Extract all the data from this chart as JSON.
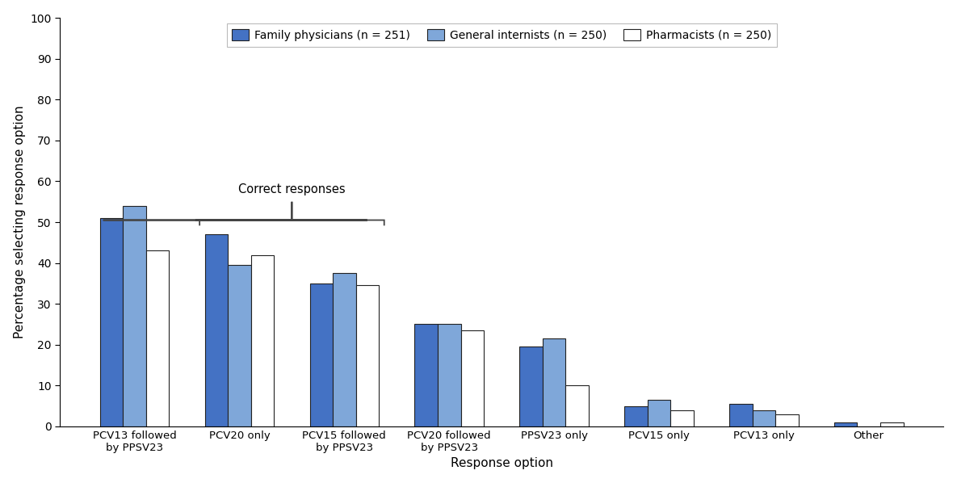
{
  "categories": [
    "PCV13 followed\nby PPSV23",
    "PCV20 only",
    "PCV15 followed\nby PPSV23",
    "PCV20 followed\nby PPSV23",
    "PPSV23 only",
    "PCV15 only",
    "PCV13 only",
    "Other"
  ],
  "family_physicians": [
    51,
    47,
    35,
    25,
    19.5,
    5,
    5.5,
    1
  ],
  "general_internists": [
    54,
    39.5,
    37.5,
    25,
    21.5,
    6.5,
    4,
    0
  ],
  "pharmacists": [
    43,
    42,
    34.5,
    23.5,
    10,
    4,
    3,
    1
  ],
  "colors": {
    "family_physicians": "#4472c4",
    "general_internists": "#7fa7d9",
    "pharmacists": "#ffffff"
  },
  "legend_labels": [
    "Family physicians (n = 251)",
    "General internists (n = 250)",
    "Pharmacists (n = 250)"
  ],
  "ylabel": "Percentage selecting response option",
  "xlabel": "Response option",
  "ylim": [
    0,
    100
  ],
  "yticks": [
    0,
    10,
    20,
    30,
    40,
    50,
    60,
    70,
    80,
    90,
    100
  ],
  "correct_responses_label": "Correct responses",
  "bar_edgecolor": "#222222",
  "bar_width": 0.22
}
